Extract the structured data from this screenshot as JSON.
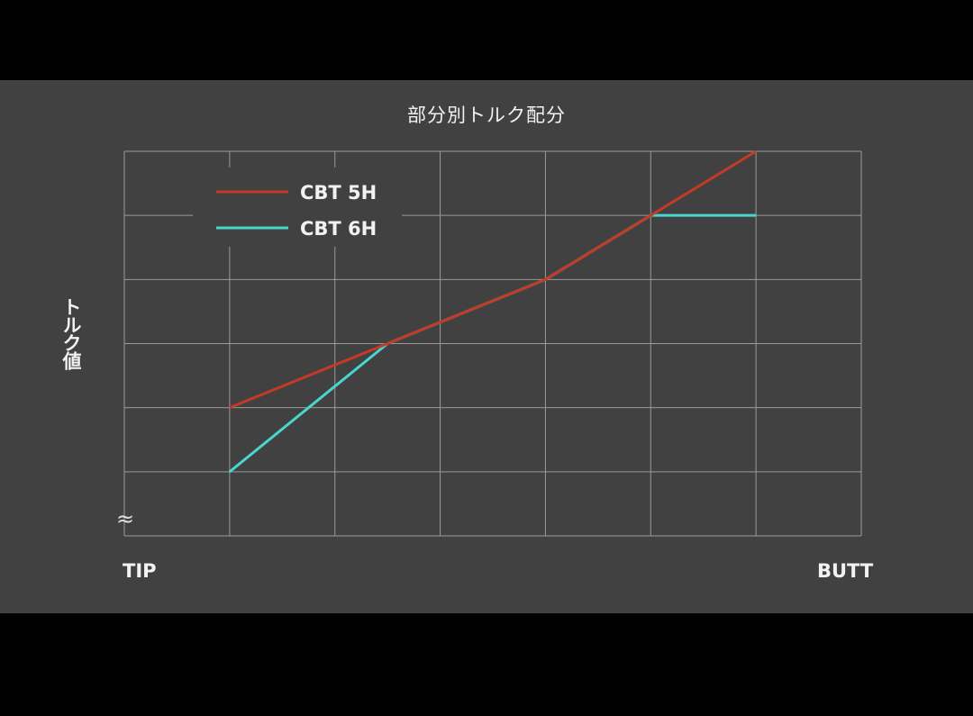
{
  "chart_data": {
    "type": "line",
    "title": "部分別トルク配分",
    "ylabel": "トルク値",
    "x_tick_labels": [
      "TIP",
      "BUTT"
    ],
    "x": [
      1,
      2,
      3,
      4,
      5,
      6
    ],
    "xlim": [
      0,
      7
    ],
    "ylim": [
      0,
      6
    ],
    "grid": true,
    "legend_position": "top-left",
    "axis_break_symbol": "≈",
    "series": [
      {
        "name": "CBT 5H",
        "color": "#c53a27",
        "points": [
          [
            1,
            2
          ],
          [
            2.5,
            3
          ],
          [
            4,
            4
          ],
          [
            5,
            5
          ],
          [
            6,
            6
          ]
        ]
      },
      {
        "name": "CBT 6H",
        "color": "#48d6cf",
        "points": [
          [
            1,
            1
          ],
          [
            2.5,
            3
          ],
          [
            4,
            4
          ],
          [
            5,
            5
          ],
          [
            6,
            5
          ]
        ]
      }
    ]
  }
}
